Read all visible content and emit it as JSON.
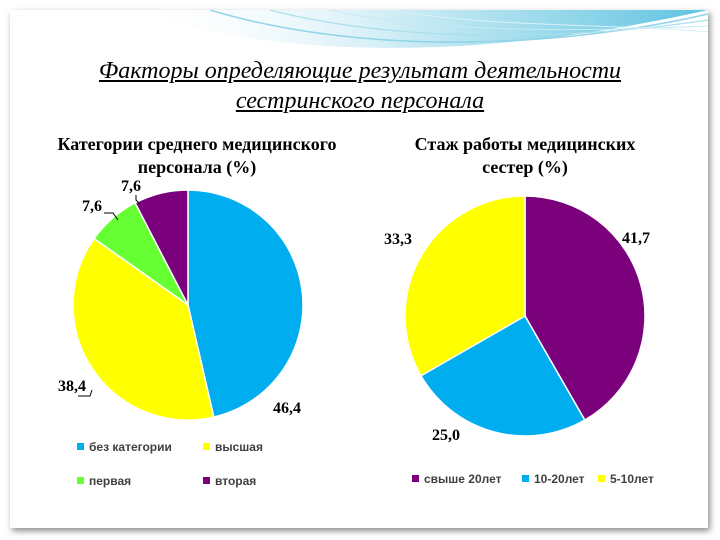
{
  "slide": {
    "title_line1": "Факторы определяющие результат деятельности",
    "title_line2": "сестринского персонала"
  },
  "colors": {
    "blue": "#00aeef",
    "yellow": "#ffff00",
    "green": "#66ff33",
    "purple": "#7b007b"
  },
  "chart_data": [
    {
      "type": "pie",
      "title_line1": "Категории среднего медицинского",
      "title_line2": "персонала (%)",
      "slices": [
        {
          "name": "без категории",
          "value": 46.4,
          "label": "46,4",
          "color": "#00aeef"
        },
        {
          "name": "высшая",
          "value": 38.4,
          "label": "38,4",
          "color": "#ffff00"
        },
        {
          "name": "первая",
          "value": 7.6,
          "label": "7,6",
          "color": "#66ff33"
        },
        {
          "name": "вторая",
          "value": 7.6,
          "label": "7,6",
          "color": "#7b007b"
        }
      ],
      "legend_placement": "bottom"
    },
    {
      "type": "pie",
      "title_line1": "Стаж работы медицинских",
      "title_line2": "сестер (%)",
      "slices": [
        {
          "name": "свыше 20лет",
          "value": 41.7,
          "label": "41,7",
          "color": "#7b007b"
        },
        {
          "name": "10-20лет",
          "value": 25.0,
          "label": "25,0",
          "color": "#00aeef"
        },
        {
          "name": "5-10лет",
          "value": 33.3,
          "label": "33,3",
          "color": "#ffff00"
        }
      ],
      "legend_placement": "bottom"
    }
  ]
}
